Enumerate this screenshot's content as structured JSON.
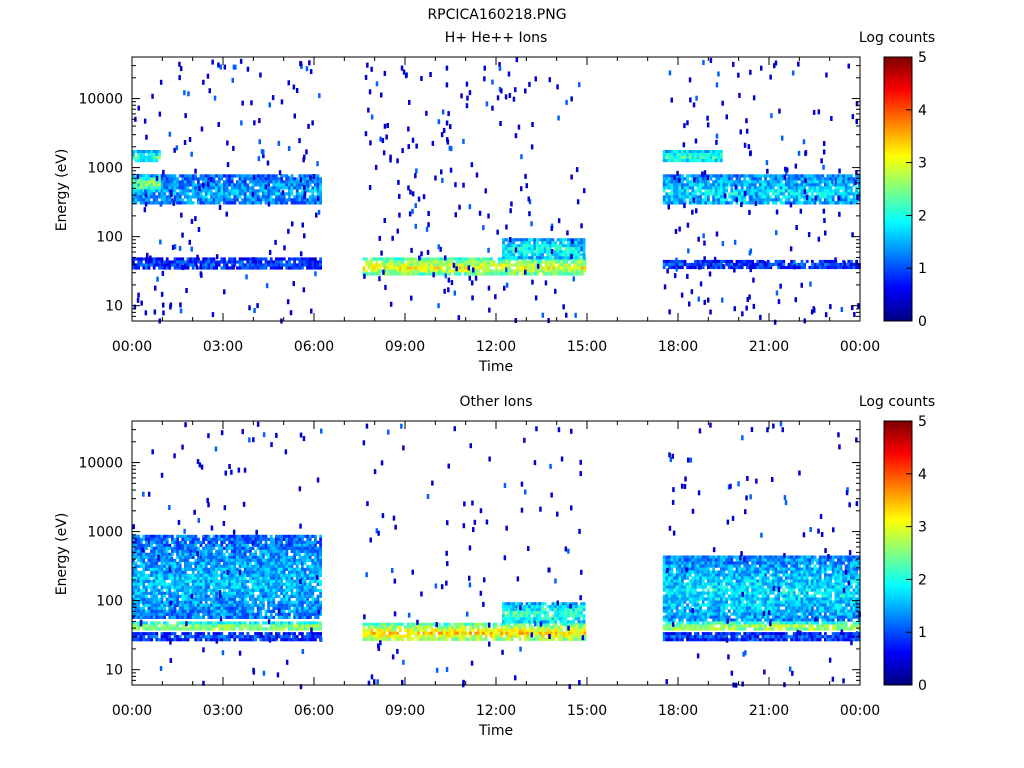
{
  "figure_title": "RPCICA160218.PNG",
  "colorbar": {
    "label": "Log counts",
    "ticks": [
      "0",
      "1",
      "2",
      "3",
      "4",
      "5"
    ],
    "range": [
      0,
      5
    ],
    "stops": [
      "#00007f",
      "#0000ff",
      "#0080ff",
      "#00ffff",
      "#80ff80",
      "#ffff00",
      "#ff8000",
      "#ff0000",
      "#7f0000"
    ]
  },
  "chart_data": [
    {
      "type": "heatmap",
      "title": "H+ He++ Ions",
      "xlabel": "Time",
      "ylabel": "Energy (eV)",
      "x_ticks": [
        "00:00",
        "03:00",
        "06:00",
        "09:00",
        "12:00",
        "15:00",
        "18:00",
        "21:00",
        "00:00"
      ],
      "xlim_hours": [
        0,
        24
      ],
      "y_ticks": [
        "10",
        "100",
        "1000",
        "10000"
      ],
      "y_scale": "log",
      "ylim": [
        6,
        40000
      ],
      "value_label": "Log counts",
      "zlim": [
        0,
        5
      ],
      "data_segments": [
        {
          "start_hour": 0.0,
          "end_hour": 6.2
        },
        {
          "start_hour": 7.6,
          "end_hour": 14.9
        },
        {
          "start_hour": 17.5,
          "end_hour": 24.0
        }
      ],
      "bands": [
        {
          "start_hour": 0.0,
          "end_hour": 6.2,
          "e_min": 300,
          "e_max": 800,
          "level": 1.5
        },
        {
          "start_hour": 0.0,
          "end_hour": 6.2,
          "e_min": 36,
          "e_max": 50,
          "level": 1.0
        },
        {
          "start_hour": 0.0,
          "end_hour": 0.9,
          "e_min": 1300,
          "e_max": 1800,
          "level": 2.2
        },
        {
          "start_hour": 0.0,
          "end_hour": 0.9,
          "e_min": 500,
          "e_max": 800,
          "level": 2.6
        },
        {
          "start_hour": 7.6,
          "end_hour": 14.9,
          "e_min": 30,
          "e_max": 50,
          "level": 3.1
        },
        {
          "start_hour": 12.2,
          "end_hour": 14.9,
          "e_min": 50,
          "e_max": 95,
          "level": 2.0
        },
        {
          "start_hour": 17.5,
          "end_hour": 24.0,
          "e_min": 300,
          "e_max": 800,
          "level": 1.8
        },
        {
          "start_hour": 17.5,
          "end_hour": 24.0,
          "e_min": 36,
          "e_max": 46,
          "level": 1.0
        },
        {
          "start_hour": 17.5,
          "end_hour": 19.4,
          "e_min": 1300,
          "e_max": 1800,
          "level": 2.2
        }
      ]
    },
    {
      "type": "heatmap",
      "title": "Other Ions",
      "xlabel": "Time",
      "ylabel": "Energy (eV)",
      "x_ticks": [
        "00:00",
        "03:00",
        "06:00",
        "09:00",
        "12:00",
        "15:00",
        "18:00",
        "21:00",
        "00:00"
      ],
      "xlim_hours": [
        0,
        24
      ],
      "y_ticks": [
        "10",
        "100",
        "1000",
        "10000"
      ],
      "y_scale": "log",
      "ylim": [
        6,
        40000
      ],
      "value_label": "Log counts",
      "zlim": [
        0,
        5
      ],
      "data_segments": [
        {
          "start_hour": 0.0,
          "end_hour": 6.2
        },
        {
          "start_hour": 7.6,
          "end_hour": 14.9
        },
        {
          "start_hour": 17.5,
          "end_hour": 24.0
        }
      ],
      "bands": [
        {
          "start_hour": 0.0,
          "end_hour": 6.2,
          "e_min": 55,
          "e_max": 900,
          "level": 1.6
        },
        {
          "start_hour": 0.0,
          "end_hour": 6.2,
          "e_min": 38,
          "e_max": 50,
          "level": 2.8
        },
        {
          "start_hour": 0.0,
          "end_hour": 6.2,
          "e_min": 28,
          "e_max": 35,
          "level": 1.0
        },
        {
          "start_hour": 7.6,
          "end_hour": 14.9,
          "e_min": 28,
          "e_max": 48,
          "level": 3.3
        },
        {
          "start_hour": 12.2,
          "end_hour": 14.9,
          "e_min": 50,
          "e_max": 95,
          "level": 2.2
        },
        {
          "start_hour": 17.5,
          "end_hour": 24.0,
          "e_min": 55,
          "e_max": 450,
          "level": 1.8
        },
        {
          "start_hour": 17.5,
          "end_hour": 24.0,
          "e_min": 38,
          "e_max": 50,
          "level": 2.9
        },
        {
          "start_hour": 17.5,
          "end_hour": 24.0,
          "e_min": 28,
          "e_max": 35,
          "level": 1.0
        }
      ]
    }
  ]
}
